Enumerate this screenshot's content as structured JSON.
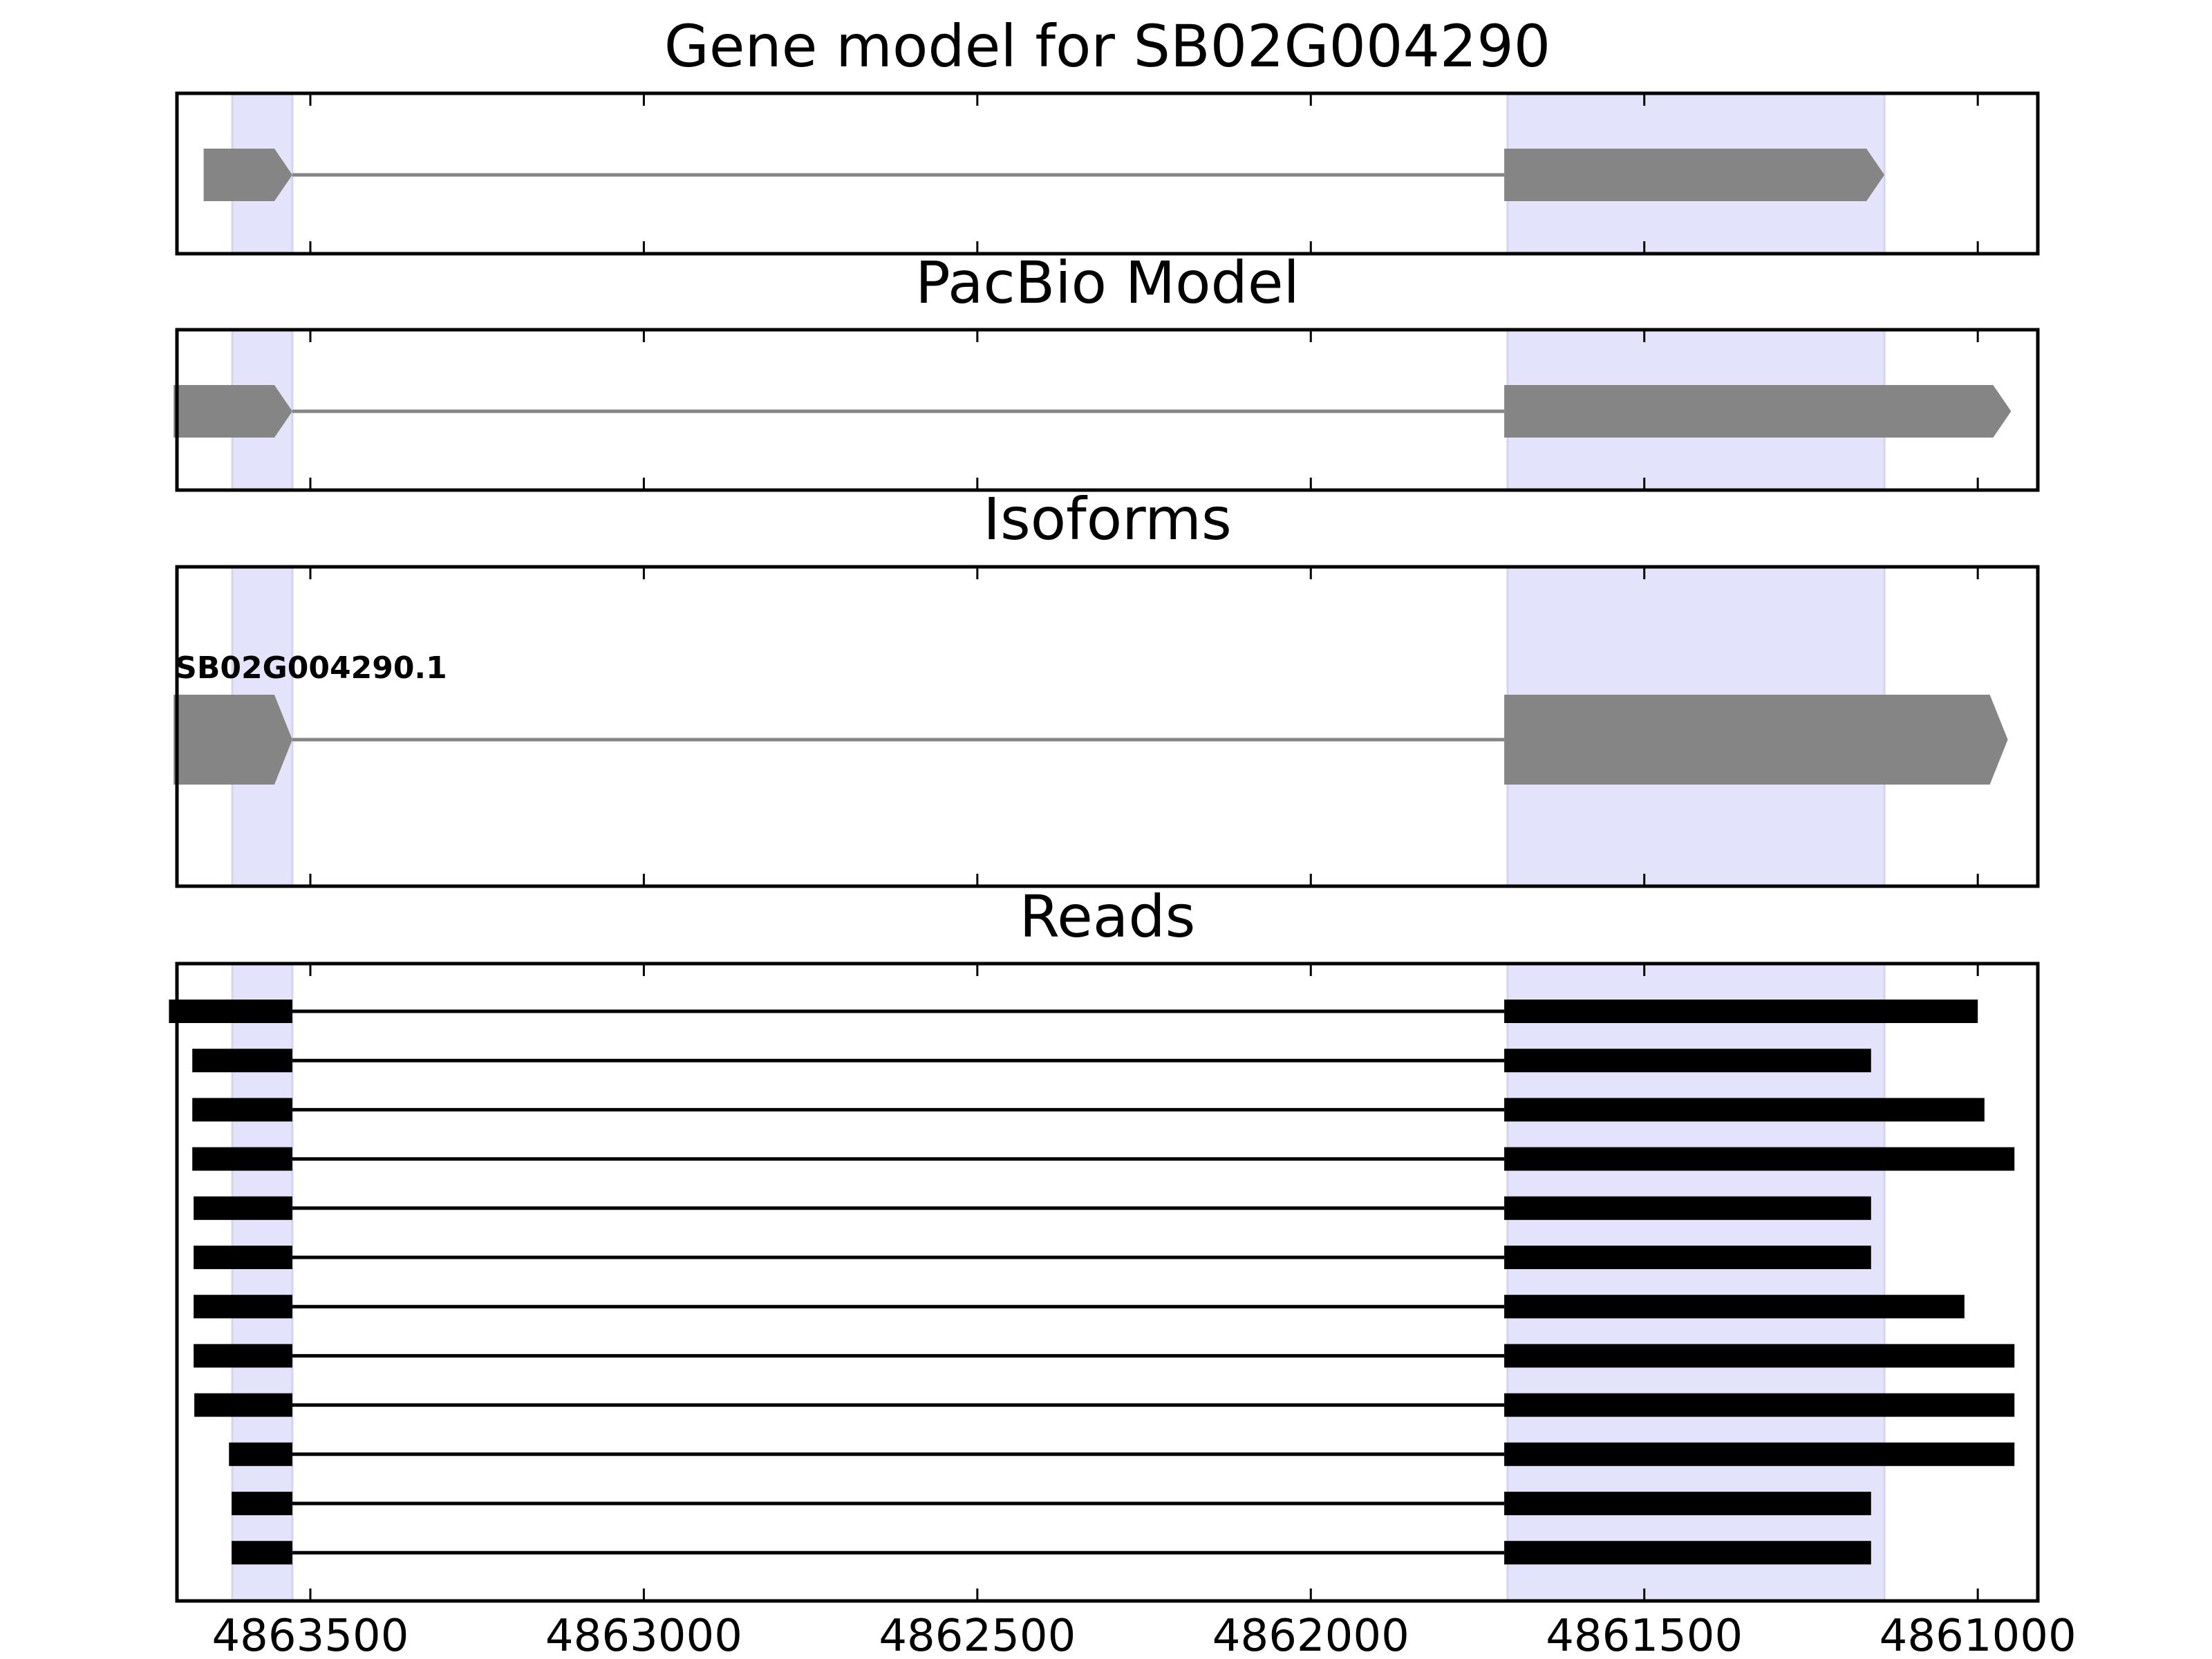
{
  "chart_data": {
    "type": "gene-structure",
    "x_axis": {
      "ticks": [
        4863500,
        4863000,
        4862500,
        4862000,
        4861500,
        4861000
      ],
      "tick_labels": [
        "4863500",
        "4863000",
        "4862500",
        "4862000",
        "4861500",
        "4861000"
      ],
      "xlim": [
        4863700,
        4860910
      ],
      "reversed": true
    },
    "highlight_regions": [
      {
        "start": 4863617,
        "end": 4863527
      },
      {
        "start": 4861705,
        "end": 4861140
      }
    ],
    "highlight_color": "#e3e3fb",
    "feature_color": "#858585",
    "read_color": "#000000",
    "panels": [
      {
        "title": "Gene model for SB02G004290",
        "type": "gene_model",
        "tracks": [
          {
            "exons": [
              [
                4863660,
                4863527
              ],
              [
                4861710,
                4861140
              ]
            ]
          }
        ]
      },
      {
        "title": "PacBio Model",
        "type": "gene_model",
        "tracks": [
          {
            "exons": [
              [
                4863705,
                4863527
              ],
              [
                4861710,
                4860950
              ]
            ]
          }
        ]
      },
      {
        "title": "Isoforms",
        "type": "isoforms",
        "tracks": [
          {
            "name": "SB02G004290.1",
            "exons": [
              [
                4863705,
                4863527
              ],
              [
                4861710,
                4860955
              ]
            ]
          }
        ]
      },
      {
        "title": "Reads",
        "type": "reads",
        "tracks": [
          {
            "exons": [
              [
                4863712,
                4863527
              ],
              [
                4861710,
                4861000
              ]
            ]
          },
          {
            "exons": [
              [
                4863677,
                4863527
              ],
              [
                4861710,
                4861160
              ]
            ]
          },
          {
            "exons": [
              [
                4863677,
                4863527
              ],
              [
                4861710,
                4860990
              ]
            ]
          },
          {
            "exons": [
              [
                4863677,
                4863527
              ],
              [
                4861710,
                4860945
              ]
            ]
          },
          {
            "exons": [
              [
                4863675,
                4863527
              ],
              [
                4861710,
                4861160
              ]
            ]
          },
          {
            "exons": [
              [
                4863675,
                4863527
              ],
              [
                4861710,
                4861160
              ]
            ]
          },
          {
            "exons": [
              [
                4863675,
                4863527
              ],
              [
                4861710,
                4861020
              ]
            ]
          },
          {
            "exons": [
              [
                4863675,
                4863527
              ],
              [
                4861710,
                4860945
              ]
            ]
          },
          {
            "exons": [
              [
                4863674,
                4863527
              ],
              [
                4861710,
                4860945
              ]
            ]
          },
          {
            "exons": [
              [
                4863622,
                4863527
              ],
              [
                4861710,
                4860945
              ]
            ]
          },
          {
            "exons": [
              [
                4863618,
                4863527
              ],
              [
                4861710,
                4861160
              ]
            ]
          },
          {
            "exons": [
              [
                4863618,
                4863527
              ],
              [
                4861710,
                4861160
              ]
            ]
          }
        ]
      }
    ]
  }
}
